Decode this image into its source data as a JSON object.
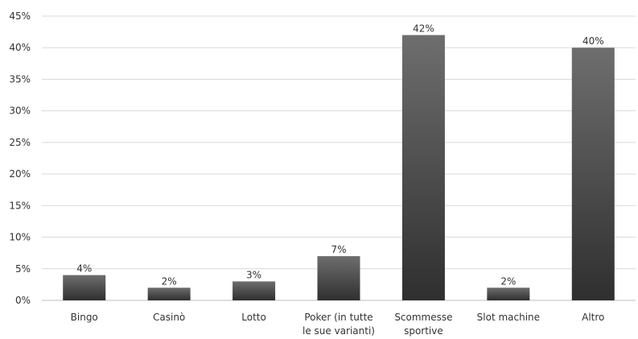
{
  "chart_data": {
    "type": "bar",
    "categories": [
      [
        "Bingo"
      ],
      [
        "Casinò"
      ],
      [
        "Lotto"
      ],
      [
        "Poker (in tutte",
        "le sue varianti)"
      ],
      [
        "Scommesse",
        "sportive"
      ],
      [
        "Slot machine"
      ],
      [
        "Altro"
      ]
    ],
    "values": [
      4,
      2,
      3,
      7,
      42,
      2,
      40
    ],
    "data_labels": [
      "4%",
      "2%",
      "3%",
      "7%",
      "42%",
      "2%",
      "40%"
    ],
    "ylim": [
      0,
      45
    ],
    "yticks": [
      0,
      5,
      10,
      15,
      20,
      25,
      30,
      35,
      40,
      45
    ],
    "ytick_labels": [
      "0%",
      "5%",
      "10%",
      "15%",
      "20%",
      "25%",
      "30%",
      "35%",
      "40%",
      "45%"
    ],
    "grid": true,
    "legend": "none",
    "bar_color_top": "#6e6e6e",
    "bar_color_bottom": "#2f2f2f"
  }
}
